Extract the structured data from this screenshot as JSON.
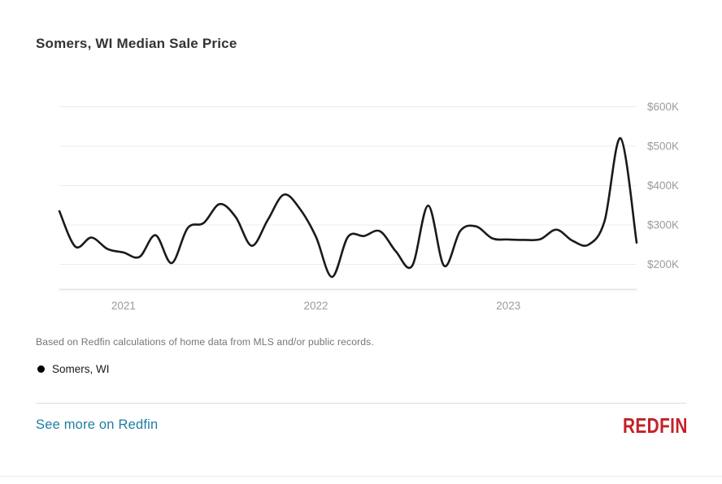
{
  "header": {
    "title": "Somers, WI Median Sale Price"
  },
  "chart_data": {
    "type": "line",
    "title": "Somers, WI Median Sale Price",
    "grid": "horizontal",
    "legend_position": "bottom-left",
    "ylim": [
      150,
      650
    ],
    "y_ticks": [
      {
        "label": "$600K",
        "value": 600
      },
      {
        "label": "$500K",
        "value": 500
      },
      {
        "label": "$400K",
        "value": 400
      },
      {
        "label": "$300K",
        "value": 300
      },
      {
        "label": "$200K",
        "value": 200
      }
    ],
    "x_ticks": [
      "2021",
      "2022",
      "2023"
    ],
    "series": [
      {
        "name": "Somers, WI",
        "color": "#1a1a1a",
        "unit": "USD thousands",
        "months": [
          "2020-09",
          "2020-10",
          "2020-11",
          "2020-12",
          "2021-01",
          "2021-02",
          "2021-03",
          "2021-04",
          "2021-05",
          "2021-06",
          "2021-07",
          "2021-08",
          "2021-09",
          "2021-10",
          "2021-11",
          "2021-12",
          "2022-01",
          "2022-02",
          "2022-03",
          "2022-04",
          "2022-05",
          "2022-06",
          "2022-07",
          "2022-08",
          "2022-09",
          "2022-10",
          "2022-11",
          "2022-12",
          "2023-01",
          "2023-02",
          "2023-03",
          "2023-04",
          "2023-05",
          "2023-06",
          "2023-07",
          "2023-08",
          "2023-09"
        ],
        "values_k": [
          335,
          245,
          268,
          239,
          230,
          219,
          274,
          203,
          292,
          305,
          353,
          320,
          247,
          313,
          377,
          341,
          270,
          168,
          270,
          272,
          284,
          232,
          196,
          349,
          196,
          285,
          296,
          266,
          263,
          262,
          264,
          288,
          260,
          250,
          310,
          520,
          255
        ]
      }
    ]
  },
  "footnote": {
    "text": "Based on Redfin calculations of home data from MLS and/or public records."
  },
  "legend": {
    "marker": "filled-circle",
    "label": "Somers, WI"
  },
  "footer": {
    "link_label": "See more on Redfin",
    "link_color": "#1e7ca3",
    "logo_text": "REDFIN",
    "logo_color": "#c32127"
  },
  "colors": {
    "line": "#1a1a1a",
    "gridline": "#ececec",
    "axis_line": "#e7e7e9",
    "tick_label": "#9b9b9f"
  }
}
